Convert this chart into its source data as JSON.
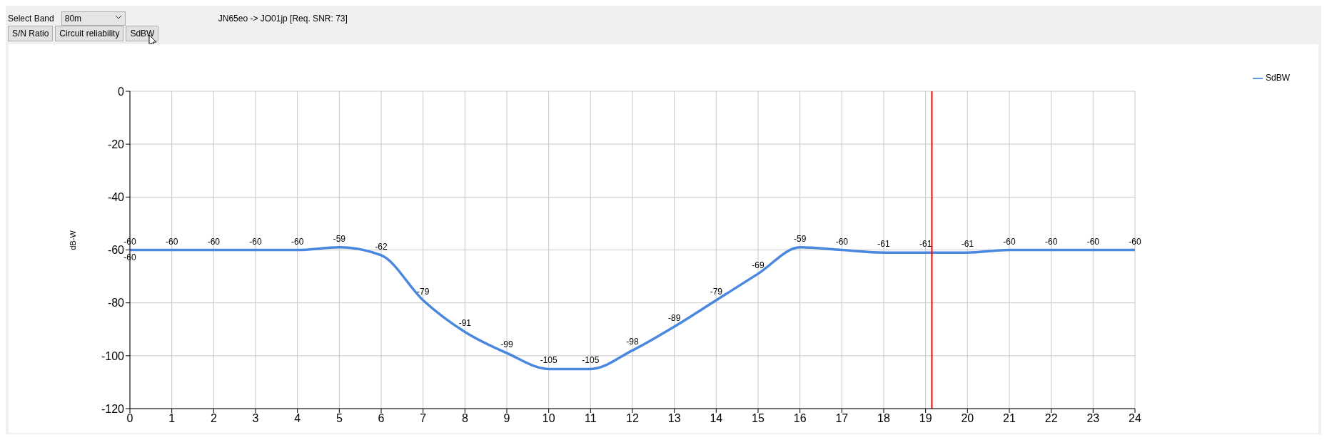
{
  "chart_data": {
    "type": "line",
    "title": "JN65eo -> JO01jp [Req. SNR: 73]",
    "ylabel": "dB-W",
    "x": [
      0,
      1,
      2,
      3,
      4,
      5,
      6,
      7,
      8,
      9,
      10,
      11,
      12,
      13,
      14,
      15,
      16,
      17,
      18,
      19,
      20,
      21,
      22,
      23,
      24
    ],
    "series": [
      {
        "name": "SdBW",
        "color": "#4a88e0",
        "values": [
          -60,
          -60,
          -60,
          -60,
          -60,
          -59,
          -62,
          -79,
          -91,
          -99,
          -105,
          -105,
          -98,
          -89,
          -79,
          -69,
          -59,
          -60,
          -61,
          -61,
          -61,
          -60,
          -60,
          -60,
          -60
        ]
      }
    ],
    "xlim": [
      0,
      24
    ],
    "xticks": [
      0,
      1,
      2,
      3,
      4,
      5,
      6,
      7,
      8,
      9,
      10,
      11,
      12,
      13,
      14,
      15,
      16,
      17,
      18,
      19,
      20,
      21,
      22,
      23,
      24
    ],
    "ylim": [
      -120,
      0
    ],
    "yticks": [
      -120,
      -100,
      -80,
      -60,
      -40,
      -20,
      0
    ],
    "ref_lines": [
      {
        "axis": "x",
        "value": 19.15,
        "color": "#ff0000"
      }
    ],
    "annotations": [
      "Select Band",
      "80m",
      "S/N Ratio",
      "Circuit reliability",
      "SdBW",
      {
        "text": "-60",
        "x": 0,
        "y": -60
      }
    ],
    "data_labels": true,
    "grid": true,
    "legend": "top right",
    "marker": "none",
    "line_style": "solid"
  }
}
